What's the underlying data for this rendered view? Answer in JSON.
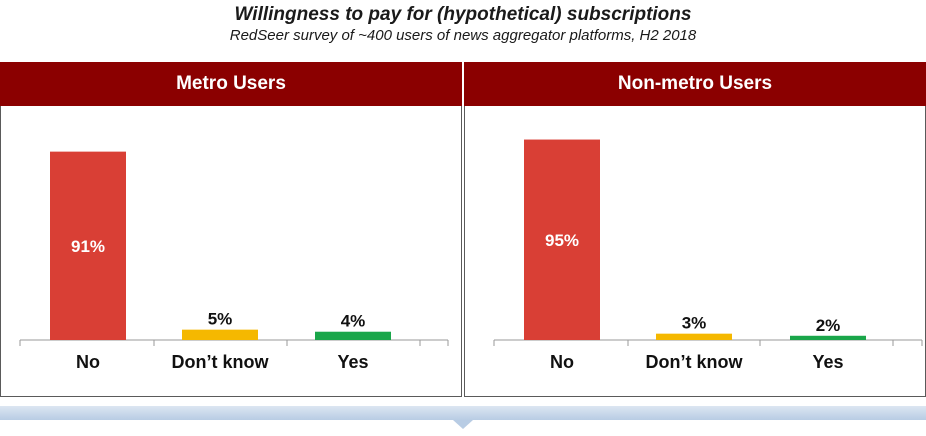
{
  "title": "Willingness to pay for (hypothetical) subscriptions",
  "subtitle": "RedSeer survey of ~400 users of news aggregator platforms, H2 2018",
  "colors": {
    "header": "#8b0000",
    "no": "#d93f35",
    "dont_know": "#f5b800",
    "yes": "#1aa64a"
  },
  "chart_data": [
    {
      "type": "bar",
      "title": "Metro Users",
      "categories": [
        "No",
        "Don’t know",
        "Yes"
      ],
      "values": [
        91,
        5,
        4
      ],
      "value_labels": [
        "91%",
        "5%",
        "4%"
      ],
      "ylim": [
        0,
        100
      ]
    },
    {
      "type": "bar",
      "title": "Non-metro Users",
      "categories": [
        "No",
        "Don’t know",
        "Yes"
      ],
      "values": [
        95,
        3,
        2
      ],
      "value_labels": [
        "95%",
        "3%",
        "2%"
      ],
      "ylim": [
        0,
        100
      ]
    }
  ]
}
